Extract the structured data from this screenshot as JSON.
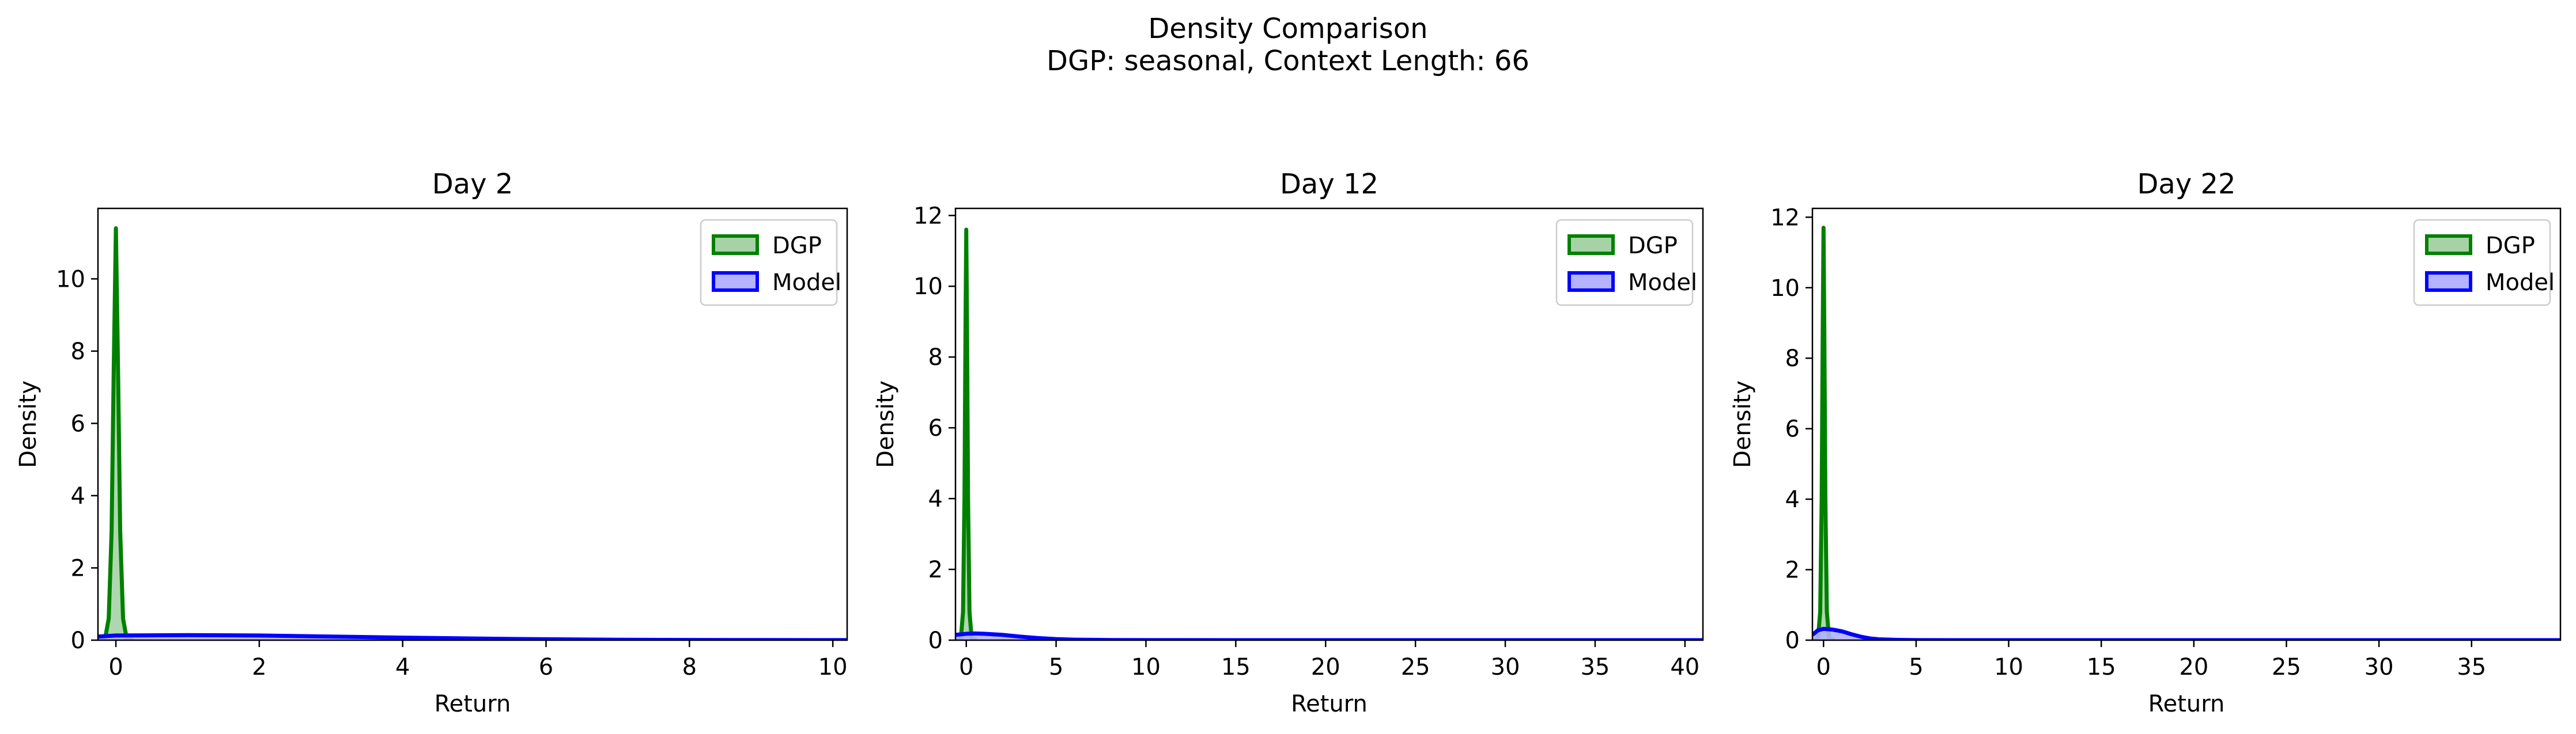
{
  "figure": {
    "title_line1": "Density Comparison",
    "title_line2": "DGP: seasonal, Context Length: 66"
  },
  "colors": {
    "dgp": "#008000",
    "model": "#0000ff",
    "dgp_fill": "#a6d3a6",
    "model_fill": "#b3b3ff"
  },
  "chart_data": [
    {
      "type": "area",
      "title": "Day 2",
      "xlabel": "Return",
      "ylabel": "Density",
      "xlim": [
        -0.25,
        10.2
      ],
      "ylim": [
        0,
        11.95
      ],
      "xticks": [
        0,
        2,
        4,
        6,
        8,
        10
      ],
      "yticks": [
        0,
        2,
        4,
        6,
        8,
        10
      ],
      "legend": "upper right",
      "series": [
        {
          "name": "DGP",
          "x": [
            -0.25,
            -0.15,
            -0.1,
            -0.06,
            -0.03,
            0.0,
            0.03,
            0.06,
            0.1,
            0.15,
            0.25
          ],
          "y": [
            0,
            0.05,
            0.6,
            3.0,
            7.5,
            11.4,
            7.5,
            3.0,
            0.6,
            0.05,
            0
          ]
        },
        {
          "name": "Model",
          "x": [
            -0.25,
            0,
            1,
            2,
            3,
            4,
            5,
            6,
            7,
            8,
            9,
            10.2
          ],
          "y": [
            0.1,
            0.13,
            0.14,
            0.13,
            0.1,
            0.07,
            0.045,
            0.025,
            0.012,
            0.006,
            0.003,
            0.001
          ]
        }
      ]
    },
    {
      "type": "area",
      "title": "Day 12",
      "xlabel": "Return",
      "ylabel": "Density",
      "xlim": [
        -0.6,
        41
      ],
      "ylim": [
        0,
        12.2
      ],
      "xticks": [
        0,
        5,
        10,
        15,
        20,
        25,
        30,
        35,
        40
      ],
      "yticks": [
        0,
        2,
        4,
        6,
        8,
        10,
        12
      ],
      "legend": "upper right",
      "series": [
        {
          "name": "DGP",
          "x": [
            -0.6,
            -0.3,
            -0.18,
            -0.1,
            -0.04,
            0.0,
            0.04,
            0.1,
            0.18,
            0.3,
            0.6
          ],
          "y": [
            0,
            0.05,
            0.8,
            4.0,
            9.0,
            11.6,
            9.0,
            4.0,
            0.8,
            0.05,
            0
          ]
        },
        {
          "name": "Model",
          "x": [
            -0.6,
            0,
            0.5,
            1,
            2,
            3,
            4,
            5,
            6,
            8,
            10,
            15,
            20,
            30,
            41
          ],
          "y": [
            0.15,
            0.18,
            0.19,
            0.18,
            0.15,
            0.1,
            0.06,
            0.03,
            0.015,
            0.005,
            0.002,
            0.0005,
            0.0002,
            0.0001,
            0
          ]
        }
      ]
    },
    {
      "type": "area",
      "title": "Day 22",
      "xlabel": "Return",
      "ylabel": "Density",
      "xlim": [
        -0.6,
        39.8
      ],
      "ylim": [
        0,
        12.25
      ],
      "xticks": [
        0,
        5,
        10,
        15,
        20,
        25,
        30,
        35
      ],
      "yticks": [
        0,
        2,
        4,
        6,
        8,
        10,
        12
      ],
      "legend": "upper right",
      "series": [
        {
          "name": "DGP",
          "x": [
            -0.6,
            -0.3,
            -0.18,
            -0.1,
            -0.04,
            0.0,
            0.04,
            0.1,
            0.18,
            0.3,
            0.6
          ],
          "y": [
            0,
            0.05,
            0.8,
            4.0,
            9.0,
            11.7,
            9.0,
            4.0,
            0.8,
            0.05,
            0
          ]
        },
        {
          "name": "Model",
          "x": [
            -0.6,
            -0.3,
            0,
            0.5,
            1,
            1.5,
            2,
            2.5,
            3,
            4,
            5,
            7,
            10,
            20,
            39.8
          ],
          "y": [
            0.15,
            0.28,
            0.32,
            0.3,
            0.25,
            0.17,
            0.1,
            0.05,
            0.025,
            0.008,
            0.002,
            0.0005,
            0.0001,
            0,
            0
          ]
        }
      ]
    }
  ]
}
